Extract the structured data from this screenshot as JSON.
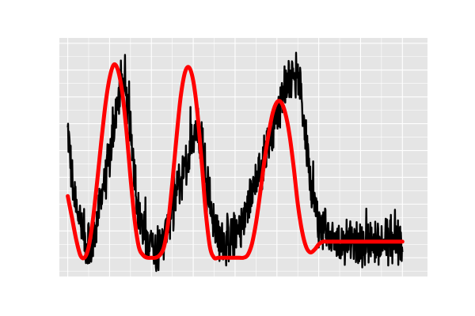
{
  "chart_data": {
    "type": "line",
    "title": "",
    "xlabel": "",
    "ylabel": "",
    "xlim": [
      -0.2,
      8.6
    ],
    "ylim": [
      0.3,
      9.2
    ],
    "grid": true,
    "tick_labels_visible": false,
    "background_color": "#e5e5e5",
    "grid_color": "#ffffff",
    "series": [
      {
        "style": "noisy",
        "color": "#000000",
        "x": [
          0.0,
          0.1,
          0.2,
          0.3,
          0.4,
          0.5,
          0.6,
          0.7,
          0.8,
          0.9,
          1.0,
          1.1,
          1.2,
          1.3,
          1.4,
          1.5,
          1.6,
          1.7,
          1.8,
          1.9,
          2.0,
          2.1,
          2.2,
          2.3,
          2.4,
          2.5,
          2.6,
          2.7,
          2.8,
          2.9,
          3.0,
          3.1,
          3.2,
          3.3,
          3.4,
          3.5,
          3.6,
          3.7,
          3.8,
          3.9,
          4.0,
          4.1,
          4.2,
          4.3,
          4.4,
          4.5,
          4.6,
          4.7,
          4.8,
          4.9,
          5.0,
          5.1,
          5.2,
          5.3,
          5.4,
          5.5,
          5.6,
          5.7,
          5.8,
          5.9,
          6.0,
          6.1,
          6.2,
          6.3,
          6.4,
          6.5,
          6.6,
          6.7,
          6.8,
          6.9,
          7.0,
          7.1,
          7.2,
          7.3,
          7.4,
          7.5,
          7.6,
          7.7,
          7.8,
          7.9,
          8.0
        ],
        "y": [
          5.8,
          4.0,
          3.0,
          2.2,
          1.7,
          1.4,
          1.5,
          2.4,
          3.2,
          4.0,
          4.8,
          5.8,
          6.8,
          7.5,
          6.8,
          6.0,
          4.2,
          2.6,
          2.0,
          1.6,
          1.5,
          1.4,
          1.3,
          1.6,
          2.2,
          2.8,
          3.4,
          3.9,
          4.3,
          4.8,
          5.6,
          6.0,
          5.4,
          4.4,
          3.2,
          2.2,
          1.7,
          1.6,
          1.6,
          1.7,
          1.8,
          2.0,
          2.4,
          2.9,
          3.4,
          3.8,
          4.2,
          4.6,
          5.2,
          5.8,
          6.4,
          6.9,
          7.4,
          7.8,
          8.0,
          7.6,
          6.8,
          5.4,
          4.0,
          3.0,
          2.2,
          2.0,
          1.8,
          1.7,
          1.6,
          1.6,
          1.6,
          1.6,
          1.6,
          1.6,
          1.6,
          1.6,
          1.6,
          1.6,
          1.6,
          1.6,
          1.6,
          1.6,
          1.6,
          1.6,
          1.6
        ],
        "noise_amplitude": 1.0
      },
      {
        "style": "smooth",
        "color": "#ff0000",
        "x": [
          0.0,
          0.1,
          0.2,
          0.3,
          0.4,
          0.5,
          0.6,
          0.7,
          0.8,
          0.9,
          1.0,
          1.1,
          1.2,
          1.3,
          1.4,
          1.5,
          1.6,
          1.7,
          1.8,
          1.9,
          2.0,
          2.1,
          2.2,
          2.3,
          2.4,
          2.5,
          2.6,
          2.7,
          2.8,
          2.9,
          3.0,
          3.1,
          3.2,
          3.3,
          3.4,
          3.5,
          3.6,
          3.7,
          3.8,
          3.9,
          4.0,
          4.1,
          4.2,
          4.3,
          4.4,
          4.5,
          4.6,
          4.7,
          4.8,
          4.9,
          5.0,
          5.1,
          5.2,
          5.3,
          5.4,
          5.5,
          5.6,
          5.7,
          5.8,
          5.9,
          6.0,
          6.1,
          6.2,
          6.3,
          6.4,
          6.5,
          6.6,
          6.7,
          6.8,
          6.9,
          7.0,
          7.1,
          7.2,
          7.3,
          7.4,
          7.5,
          7.6,
          7.7,
          7.8,
          7.9,
          8.0
        ],
        "y": [
          3.3,
          2.5,
          1.7,
          1.1,
          1.0,
          1.4,
          2.4,
          3.8,
          5.3,
          6.7,
          7.7,
          8.2,
          8.0,
          7.2,
          5.8,
          4.0,
          2.4,
          1.4,
          1.1,
          1.0,
          1.0,
          1.0,
          1.1,
          1.4,
          2.3,
          3.8,
          5.5,
          7.0,
          7.9,
          8.1,
          7.6,
          6.4,
          4.6,
          2.7,
          1.4,
          1.0,
          1.0,
          1.0,
          1.0,
          1.0,
          1.0,
          1.0,
          1.0,
          1.1,
          1.5,
          2.3,
          3.4,
          4.6,
          5.6,
          6.4,
          6.8,
          6.8,
          6.4,
          5.6,
          4.4,
          3.0,
          2.0,
          1.4,
          1.2,
          1.3,
          1.5,
          1.6,
          1.6,
          1.6,
          1.6,
          1.6,
          1.6,
          1.6,
          1.6,
          1.6,
          1.6,
          1.6,
          1.6,
          1.6,
          1.6,
          1.6,
          1.6,
          1.6,
          1.6,
          1.6,
          1.6
        ]
      }
    ]
  }
}
